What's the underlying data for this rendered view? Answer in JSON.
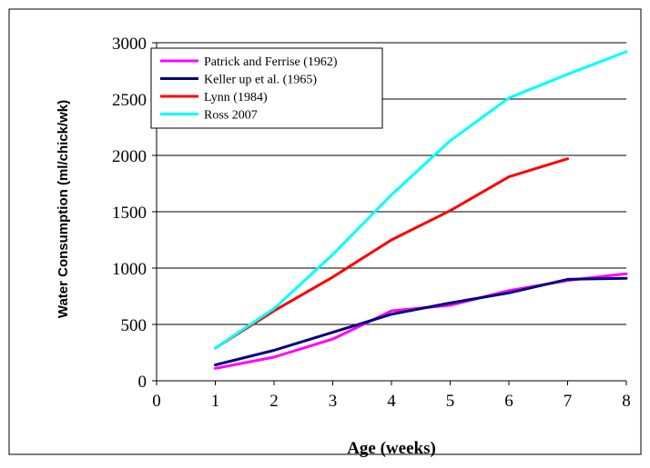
{
  "chart_data": {
    "type": "line",
    "title": "",
    "xlabel": "Age (weeks)",
    "ylabel": "Water Consumption (ml/chick/wk)",
    "xlim": [
      0,
      8
    ],
    "ylim": [
      0,
      3000
    ],
    "x_ticks": [
      0,
      1,
      2,
      3,
      4,
      5,
      6,
      7,
      8
    ],
    "y_ticks": [
      0,
      500,
      1000,
      1500,
      2000,
      2500,
      3000
    ],
    "grid": "horizontal",
    "legend_position": "top-left",
    "series": [
      {
        "name": "Patrick and Ferrise (1962)",
        "color": "#ff00ff",
        "x": [
          1,
          2,
          3,
          4,
          5,
          6,
          7,
          8
        ],
        "y": [
          110,
          210,
          370,
          620,
          670,
          800,
          890,
          950
        ]
      },
      {
        "name": "Keller up et al. (1965)",
        "color": "#000080",
        "x": [
          1,
          2,
          3,
          4,
          5,
          6,
          7,
          8
        ],
        "y": [
          140,
          270,
          430,
          590,
          690,
          780,
          900,
          910
        ]
      },
      {
        "name": "Lynn (1984)",
        "color": "#ff0000",
        "x": [
          1,
          2,
          3,
          4,
          5,
          6,
          7
        ],
        "y": [
          290,
          620,
          920,
          1250,
          1510,
          1810,
          1970
        ]
      },
      {
        "name": "Ross 2007",
        "color": "#00ffff",
        "x": [
          1,
          2,
          3,
          4,
          5,
          6,
          7,
          8
        ],
        "y": [
          290,
          640,
          1120,
          1650,
          2130,
          2510,
          2720,
          2920
        ]
      }
    ]
  }
}
